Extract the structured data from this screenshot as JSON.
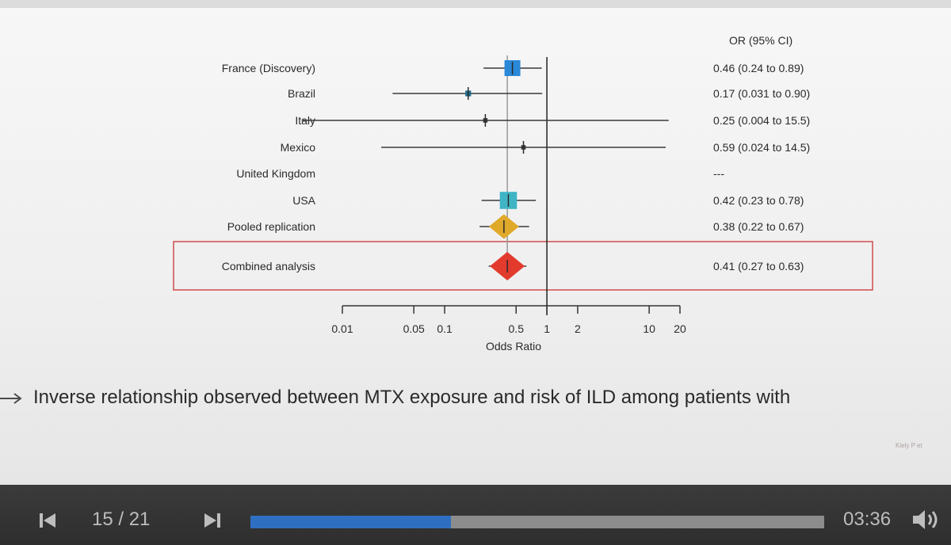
{
  "chart_data": {
    "type": "forest",
    "header": "OR (95% CI)",
    "xlabel": "Odds Ratio",
    "xscale": "log",
    "xlim": [
      0.01,
      20
    ],
    "reference_line": 1,
    "pooled_line": 0.41,
    "ticks": [
      0.01,
      0.05,
      0.1,
      0.5,
      1,
      2,
      10,
      20
    ],
    "tick_labels": [
      "0.01",
      "0.05",
      "0.1",
      "0.5",
      "1",
      "2",
      "10",
      "20"
    ],
    "rows": [
      {
        "label": "France (Discovery)",
        "or": 0.46,
        "lo": 0.24,
        "hi": 0.89,
        "ci_text": "0.46 (0.24 to 0.89)",
        "marker": "square",
        "weight": 1.0,
        "color": "#2a88d8"
      },
      {
        "label": "Brazil",
        "or": 0.17,
        "lo": 0.031,
        "hi": 0.9,
        "ci_text": "0.17 (0.031 to 0.90)",
        "marker": "square",
        "weight": 0.2,
        "color": "#1f6b8a"
      },
      {
        "label": "Italy",
        "or": 0.25,
        "lo": 0.004,
        "hi": 15.5,
        "ci_text": "0.25 (0.004 to 15.5)",
        "marker": "square",
        "weight": 0.1,
        "color": "#3a3a3a"
      },
      {
        "label": "Mexico",
        "or": 0.59,
        "lo": 0.024,
        "hi": 14.5,
        "ci_text": "0.59 (0.024 to 14.5)",
        "marker": "square",
        "weight": 0.1,
        "color": "#3a3a3a"
      },
      {
        "label": "United Kingdom",
        "or": null,
        "lo": null,
        "hi": null,
        "ci_text": "---",
        "marker": "none",
        "weight": 0,
        "color": "#3a3a3a"
      },
      {
        "label": "USA",
        "or": 0.42,
        "lo": 0.23,
        "hi": 0.78,
        "ci_text": "0.42 (0.23 to 0.78)",
        "marker": "square",
        "weight": 1.1,
        "color": "#3fb4c4"
      },
      {
        "label": "Pooled replication",
        "or": 0.38,
        "lo": 0.22,
        "hi": 0.67,
        "ci_text": "0.38 (0.22 to 0.67)",
        "marker": "diamond",
        "weight": 0.75,
        "color": "#e0a92a"
      },
      {
        "label": "Combined analysis",
        "or": 0.41,
        "lo": 0.27,
        "hi": 0.63,
        "ci_text": "0.41 (0.27 to 0.63)",
        "marker": "diamond",
        "weight": 1.0,
        "color": "#e23b2e",
        "highlighted": true
      }
    ],
    "colors": {
      "highlight_box": "#d04a4a",
      "axis": "#333333",
      "reference": "#222222",
      "pooled_line": "#9a9a9a"
    }
  },
  "caption": "Inverse relationship observed between MTX exposure and risk of ILD among patients with",
  "footnote": "Kiely P et",
  "player": {
    "page_counter": "15 / 21",
    "time": "03:36",
    "progress": 0.35,
    "prev_icon": "skip-previous-icon",
    "next_icon": "skip-next-icon",
    "volume_icon": "volume-icon",
    "accent": "#2f6fc1"
  }
}
